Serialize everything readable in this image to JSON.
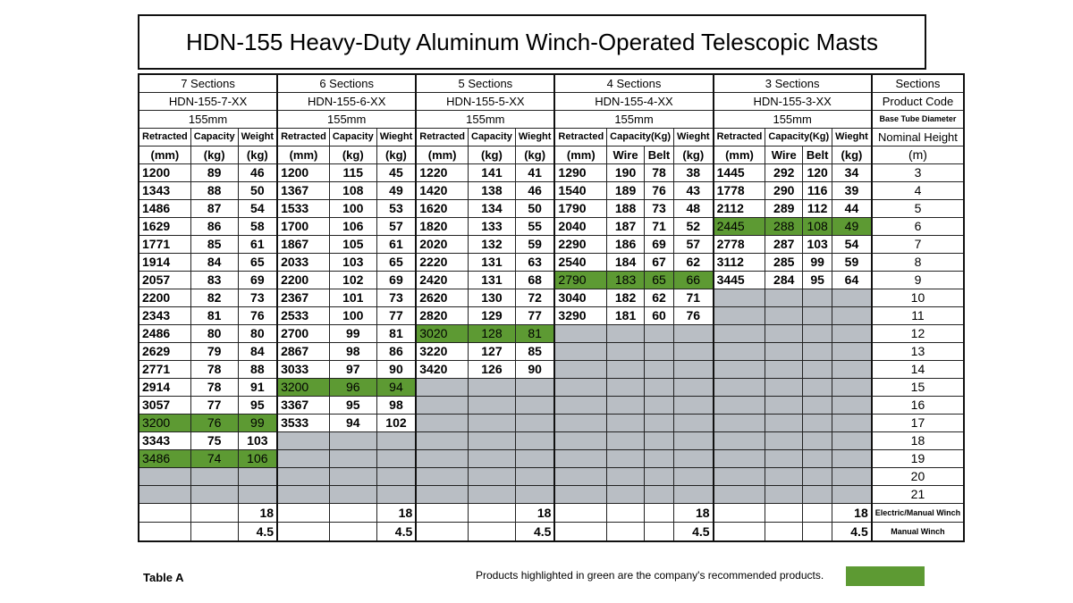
{
  "title": "HDN-155 Heavy-Duty Aluminum Winch-Operated Telescopic Masts",
  "sections": [
    {
      "label": "7 Sections",
      "code": "HDN-155-7-XX",
      "diameter": "155mm",
      "cols": [
        "Retracted",
        "Capacity",
        "Weight"
      ],
      "units": [
        "(mm)",
        "(kg)",
        "(kg)"
      ],
      "rows": [
        [
          "1200",
          "89",
          "46"
        ],
        [
          "1343",
          "88",
          "50"
        ],
        [
          "1486",
          "87",
          "54"
        ],
        [
          "1629",
          "86",
          "58"
        ],
        [
          "1771",
          "85",
          "61"
        ],
        [
          "1914",
          "84",
          "65"
        ],
        [
          "2057",
          "83",
          "69"
        ],
        [
          "2200",
          "82",
          "73"
        ],
        [
          "2343",
          "81",
          "76"
        ],
        [
          "2486",
          "80",
          "80"
        ],
        [
          "2629",
          "79",
          "84"
        ],
        [
          "2771",
          "78",
          "88"
        ],
        [
          "2914",
          "78",
          "91"
        ],
        [
          "3057",
          "77",
          "95"
        ],
        [
          "3200",
          "76",
          "99"
        ],
        [
          "3343",
          "75",
          "103"
        ],
        [
          "3486",
          "74",
          "106"
        ]
      ],
      "green_rows": [
        14,
        16
      ],
      "elec": "18",
      "manual": "4.5"
    },
    {
      "label": "6 Sections",
      "code": "HDN-155-6-XX",
      "diameter": "155mm",
      "cols": [
        "Retracted",
        "Capacity",
        "Wieght"
      ],
      "units": [
        "(mm)",
        "(kg)",
        "(kg)"
      ],
      "rows": [
        [
          "1200",
          "115",
          "45"
        ],
        [
          "1367",
          "108",
          "49"
        ],
        [
          "1533",
          "100",
          "53"
        ],
        [
          "1700",
          "106",
          "57"
        ],
        [
          "1867",
          "105",
          "61"
        ],
        [
          "2033",
          "103",
          "65"
        ],
        [
          "2200",
          "102",
          "69"
        ],
        [
          "2367",
          "101",
          "73"
        ],
        [
          "2533",
          "100",
          "77"
        ],
        [
          "2700",
          "99",
          "81"
        ],
        [
          "2867",
          "98",
          "86"
        ],
        [
          "3033",
          "97",
          "90"
        ],
        [
          "3200",
          "96",
          "94"
        ],
        [
          "3367",
          "95",
          "98"
        ],
        [
          "3533",
          "94",
          "102"
        ]
      ],
      "green_rows": [
        12
      ],
      "elec": "18",
      "manual": "4.5"
    },
    {
      "label": "5 Sections",
      "code": "HDN-155-5-XX",
      "diameter": "155mm",
      "cols": [
        "Retracted",
        "Capacity",
        "Wieght"
      ],
      "units": [
        "(mm)",
        "(kg)",
        "(kg)"
      ],
      "rows": [
        [
          "1220",
          "141",
          "41"
        ],
        [
          "1420",
          "138",
          "46"
        ],
        [
          "1620",
          "134",
          "50"
        ],
        [
          "1820",
          "133",
          "55"
        ],
        [
          "2020",
          "132",
          "59"
        ],
        [
          "2220",
          "131",
          "63"
        ],
        [
          "2420",
          "131",
          "68"
        ],
        [
          "2620",
          "130",
          "72"
        ],
        [
          "2820",
          "129",
          "77"
        ],
        [
          "3020",
          "128",
          "81"
        ],
        [
          "3220",
          "127",
          "85"
        ],
        [
          "3420",
          "126",
          "90"
        ]
      ],
      "green_rows": [
        9
      ],
      "elec": "18",
      "manual": "4.5"
    },
    {
      "label": "4 Sections",
      "code": "HDN-155-4-XX",
      "diameter": "155mm",
      "cols": [
        "Retracted",
        "Capacity(Kg)",
        "Wieght"
      ],
      "units": [
        "(mm)",
        "Wire",
        "Belt",
        "(kg)"
      ],
      "rows": [
        [
          "1290",
          "190",
          "78",
          "38"
        ],
        [
          "1540",
          "189",
          "76",
          "43"
        ],
        [
          "1790",
          "188",
          "73",
          "48"
        ],
        [
          "2040",
          "187",
          "71",
          "52"
        ],
        [
          "2290",
          "186",
          "69",
          "57"
        ],
        [
          "2540",
          "184",
          "67",
          "62"
        ],
        [
          "2790",
          "183",
          "65",
          "66"
        ],
        [
          "3040",
          "182",
          "62",
          "71"
        ],
        [
          "3290",
          "181",
          "60",
          "76"
        ]
      ],
      "green_rows": [
        6
      ],
      "elec": "18",
      "manual": "4.5"
    },
    {
      "label": "3 Sections",
      "code": "HDN-155-3-XX",
      "diameter": "155mm",
      "cols": [
        "Retracted",
        "Capacity(Kg)",
        "Wieght"
      ],
      "units": [
        "(mm)",
        "Wire",
        "Belt",
        "(kg)"
      ],
      "rows": [
        [
          "1445",
          "292",
          "120",
          "34"
        ],
        [
          "1778",
          "290",
          "116",
          "39"
        ],
        [
          "2112",
          "289",
          "112",
          "44"
        ],
        [
          "2445",
          "288",
          "108",
          "49"
        ],
        [
          "2778",
          "287",
          "103",
          "54"
        ],
        [
          "3112",
          "285",
          "99",
          "59"
        ],
        [
          "3445",
          "284",
          "95",
          "64"
        ]
      ],
      "green_rows": [
        3
      ],
      "elec": "18",
      "manual": "4.5"
    }
  ],
  "right": {
    "label": "Sections",
    "code": "Product Code",
    "diameter": "Base Tube Diameter",
    "nominal": "Nominal Height",
    "unit": "(m)",
    "heights": [
      "3",
      "4",
      "5",
      "6",
      "7",
      "8",
      "9",
      "10",
      "11",
      "12",
      "13",
      "14",
      "15",
      "16",
      "17",
      "18",
      "19",
      "20",
      "21"
    ],
    "elec": "Electric/Manual Winch",
    "manual": "Manual Winch"
  },
  "table_label": "Table A",
  "note": "Products highlighted in green are the company's recommended products.",
  "colors": {
    "green": "#5d9a33",
    "gray": "#b9bec4"
  }
}
